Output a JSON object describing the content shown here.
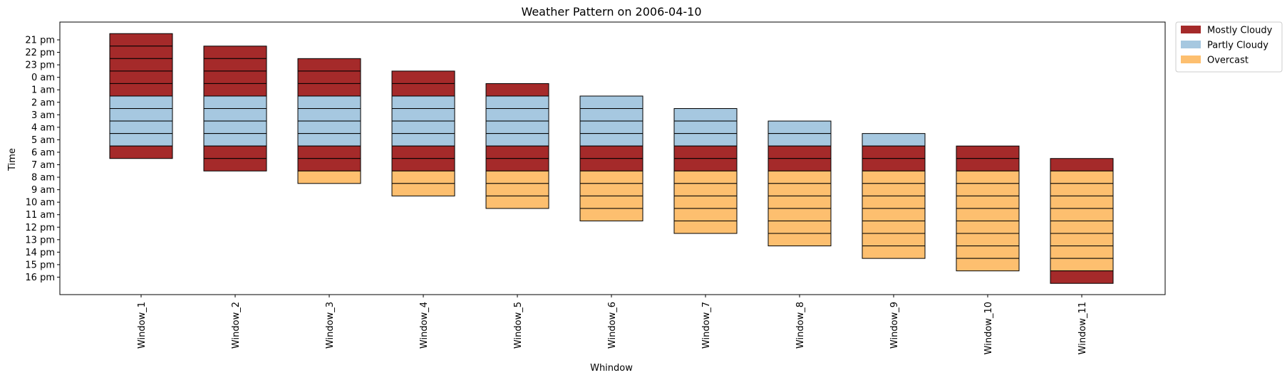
{
  "chart_data": {
    "type": "bar",
    "title": "Weather Pattern on 2006-04-10",
    "xlabel": "Whindow",
    "ylabel": "Time",
    "categories": [
      "Window_1",
      "Window_2",
      "Window_3",
      "Window_4",
      "Window_5",
      "Window_6",
      "Window_7",
      "Window_8",
      "Window_9",
      "Window_10",
      "Window_11"
    ],
    "time_ticks": [
      "21 pm",
      "22 pm",
      "23 pm",
      "0 am",
      "1 am",
      "2 am",
      "3 am",
      "4 am",
      "5 am",
      "6 am",
      "7 am",
      "8 am",
      "9 am",
      "10 am",
      "11 am",
      "12 pm",
      "13 pm",
      "14 pm",
      "15 pm",
      "16 pm"
    ],
    "windows": [
      {
        "start": "21 pm",
        "conditions": [
          "Mostly Cloudy",
          "Mostly Cloudy",
          "Mostly Cloudy",
          "Mostly Cloudy",
          "Mostly Cloudy",
          "Partly Cloudy",
          "Partly Cloudy",
          "Partly Cloudy",
          "Partly Cloudy",
          "Mostly Cloudy"
        ]
      },
      {
        "start": "22 pm",
        "conditions": [
          "Mostly Cloudy",
          "Mostly Cloudy",
          "Mostly Cloudy",
          "Mostly Cloudy",
          "Partly Cloudy",
          "Partly Cloudy",
          "Partly Cloudy",
          "Partly Cloudy",
          "Mostly Cloudy",
          "Mostly Cloudy"
        ]
      },
      {
        "start": "23 pm",
        "conditions": [
          "Mostly Cloudy",
          "Mostly Cloudy",
          "Mostly Cloudy",
          "Partly Cloudy",
          "Partly Cloudy",
          "Partly Cloudy",
          "Partly Cloudy",
          "Mostly Cloudy",
          "Mostly Cloudy",
          "Overcast"
        ]
      },
      {
        "start": "0 am",
        "conditions": [
          "Mostly Cloudy",
          "Mostly Cloudy",
          "Partly Cloudy",
          "Partly Cloudy",
          "Partly Cloudy",
          "Partly Cloudy",
          "Mostly Cloudy",
          "Mostly Cloudy",
          "Overcast",
          "Overcast"
        ]
      },
      {
        "start": "1 am",
        "conditions": [
          "Mostly Cloudy",
          "Partly Cloudy",
          "Partly Cloudy",
          "Partly Cloudy",
          "Partly Cloudy",
          "Mostly Cloudy",
          "Mostly Cloudy",
          "Overcast",
          "Overcast",
          "Overcast"
        ]
      },
      {
        "start": "2 am",
        "conditions": [
          "Partly Cloudy",
          "Partly Cloudy",
          "Partly Cloudy",
          "Partly Cloudy",
          "Mostly Cloudy",
          "Mostly Cloudy",
          "Overcast",
          "Overcast",
          "Overcast",
          "Overcast"
        ]
      },
      {
        "start": "3 am",
        "conditions": [
          "Partly Cloudy",
          "Partly Cloudy",
          "Partly Cloudy",
          "Mostly Cloudy",
          "Mostly Cloudy",
          "Overcast",
          "Overcast",
          "Overcast",
          "Overcast",
          "Overcast"
        ]
      },
      {
        "start": "4 am",
        "conditions": [
          "Partly Cloudy",
          "Partly Cloudy",
          "Mostly Cloudy",
          "Mostly Cloudy",
          "Overcast",
          "Overcast",
          "Overcast",
          "Overcast",
          "Overcast",
          "Overcast"
        ]
      },
      {
        "start": "5 am",
        "conditions": [
          "Partly Cloudy",
          "Mostly Cloudy",
          "Mostly Cloudy",
          "Overcast",
          "Overcast",
          "Overcast",
          "Overcast",
          "Overcast",
          "Overcast",
          "Overcast"
        ]
      },
      {
        "start": "6 am",
        "conditions": [
          "Mostly Cloudy",
          "Mostly Cloudy",
          "Overcast",
          "Overcast",
          "Overcast",
          "Overcast",
          "Overcast",
          "Overcast",
          "Overcast",
          "Overcast"
        ]
      },
      {
        "start": "7 am",
        "conditions": [
          "Mostly Cloudy",
          "Overcast",
          "Overcast",
          "Overcast",
          "Overcast",
          "Overcast",
          "Overcast",
          "Overcast",
          "Overcast",
          "Mostly Cloudy"
        ]
      }
    ],
    "legend": [
      {
        "name": "Mostly Cloudy",
        "color": "#a52a2a"
      },
      {
        "name": "Partly Cloudy",
        "color": "#a6c8e0"
      },
      {
        "name": "Overcast",
        "color": "#fdbf6f"
      }
    ],
    "legend_position": "outside-top-right",
    "grid": false
  }
}
